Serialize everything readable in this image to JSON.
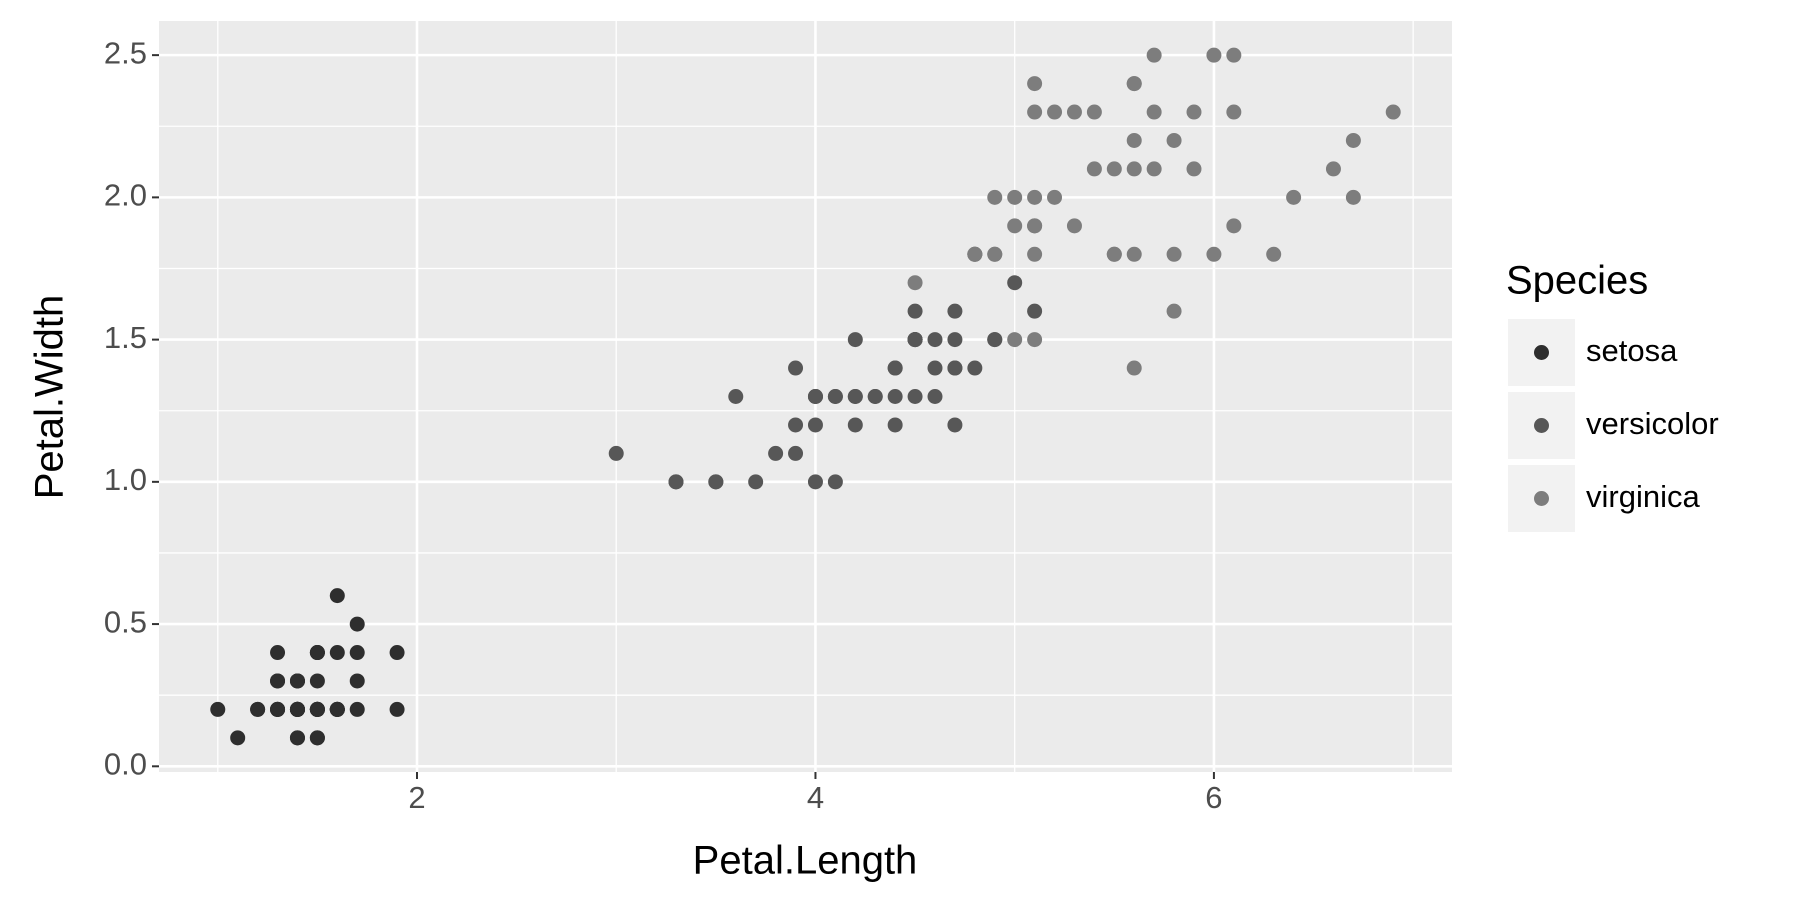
{
  "chart_data": {
    "type": "scatter",
    "x_label": "Petal.Length",
    "y_label": "Petal.Width",
    "legend_title": "Species",
    "legend": "right",
    "grid": true,
    "xlim": [
      0.705,
      7.195
    ],
    "xticks": [
      2,
      4,
      6
    ],
    "xminor": [
      1,
      3,
      5,
      7
    ],
    "ylim": [
      -0.02,
      2.62
    ],
    "yticks": [
      {
        "value": 0,
        "label": "0.0"
      },
      {
        "value": 0.5,
        "label": "0.5"
      },
      {
        "value": 1,
        "label": "1.0"
      },
      {
        "value": 1.5,
        "label": "1.5"
      },
      {
        "value": 2,
        "label": "2.0"
      },
      {
        "value": 2.5,
        "label": "2.5"
      }
    ],
    "yminor": [
      0.25,
      0.75,
      1.25,
      1.75,
      2.25
    ],
    "series": [
      {
        "name": "setosa",
        "color": "#2e2e2e",
        "x": [
          1.4,
          1.4,
          1.3,
          1.5,
          1.4,
          1.7,
          1.4,
          1.5,
          1.4,
          1.5,
          1.5,
          1.6,
          1.4,
          1.1,
          1.2,
          1.5,
          1.3,
          1.4,
          1.7,
          1.5,
          1.7,
          1.5,
          1.0,
          1.7,
          1.9,
          1.6,
          1.6,
          1.5,
          1.4,
          1.6,
          1.6,
          1.5,
          1.5,
          1.4,
          1.5,
          1.2,
          1.3,
          1.4,
          1.3,
          1.5,
          1.3,
          1.3,
          1.3,
          1.6,
          1.9,
          1.4,
          1.6,
          1.4,
          1.5,
          1.4
        ],
        "values": [
          0.2,
          0.2,
          0.2,
          0.2,
          0.2,
          0.4,
          0.3,
          0.2,
          0.2,
          0.1,
          0.2,
          0.2,
          0.1,
          0.1,
          0.2,
          0.4,
          0.4,
          0.3,
          0.3,
          0.3,
          0.2,
          0.4,
          0.2,
          0.5,
          0.2,
          0.2,
          0.4,
          0.2,
          0.2,
          0.2,
          0.2,
          0.4,
          0.1,
          0.2,
          0.2,
          0.2,
          0.2,
          0.1,
          0.2,
          0.2,
          0.3,
          0.3,
          0.2,
          0.6,
          0.4,
          0.3,
          0.2,
          0.2,
          0.2,
          0.2
        ]
      },
      {
        "name": "versicolor",
        "color": "#575757",
        "x": [
          4.7,
          4.5,
          4.9,
          4.0,
          4.6,
          4.5,
          4.7,
          3.3,
          4.6,
          3.9,
          3.5,
          4.2,
          4.0,
          4.7,
          3.6,
          4.4,
          4.5,
          4.1,
          4.5,
          3.9,
          4.8,
          4.0,
          4.9,
          4.7,
          4.3,
          4.4,
          4.8,
          5.0,
          4.5,
          3.5,
          3.8,
          3.7,
          3.9,
          5.1,
          4.5,
          4.5,
          4.7,
          4.4,
          4.1,
          4.0,
          4.4,
          4.6,
          4.0,
          3.3,
          4.2,
          4.2,
          4.2,
          4.3,
          3.0,
          4.1
        ],
        "values": [
          1.4,
          1.5,
          1.5,
          1.3,
          1.5,
          1.3,
          1.6,
          1.0,
          1.3,
          1.4,
          1.0,
          1.5,
          1.0,
          1.4,
          1.3,
          1.4,
          1.5,
          1.0,
          1.5,
          1.1,
          1.8,
          1.3,
          1.5,
          1.2,
          1.3,
          1.4,
          1.4,
          1.7,
          1.5,
          1.0,
          1.1,
          1.0,
          1.2,
          1.6,
          1.5,
          1.6,
          1.5,
          1.3,
          1.3,
          1.3,
          1.2,
          1.4,
          1.2,
          1.0,
          1.3,
          1.2,
          1.3,
          1.3,
          1.1,
          1.3
        ]
      },
      {
        "name": "virginica",
        "color": "#7d7d7d",
        "x": [
          6.0,
          5.1,
          5.9,
          5.6,
          5.8,
          6.6,
          4.5,
          6.3,
          5.8,
          6.1,
          5.1,
          5.3,
          5.5,
          5.0,
          5.1,
          5.3,
          5.5,
          6.7,
          6.9,
          5.0,
          5.7,
          4.9,
          6.7,
          4.9,
          5.7,
          6.0,
          4.8,
          4.9,
          5.6,
          5.8,
          6.1,
          6.4,
          5.6,
          5.1,
          5.6,
          6.1,
          5.6,
          5.5,
          4.8,
          5.4,
          5.6,
          5.1,
          5.1,
          5.9,
          5.7,
          5.2,
          5.0,
          5.2,
          5.4,
          5.1
        ],
        "values": [
          2.5,
          1.9,
          2.1,
          1.8,
          2.2,
          2.1,
          1.7,
          1.8,
          1.8,
          2.5,
          2.0,
          1.9,
          2.1,
          2.0,
          2.4,
          2.3,
          1.8,
          2.2,
          2.3,
          1.5,
          2.3,
          2.0,
          2.0,
          1.8,
          2.1,
          1.8,
          1.8,
          1.8,
          2.1,
          1.6,
          1.9,
          2.0,
          2.2,
          1.5,
          1.4,
          2.3,
          2.4,
          1.8,
          1.8,
          2.1,
          2.4,
          2.3,
          1.9,
          2.3,
          2.5,
          2.3,
          1.9,
          2.0,
          2.3,
          1.8
        ]
      }
    ]
  }
}
